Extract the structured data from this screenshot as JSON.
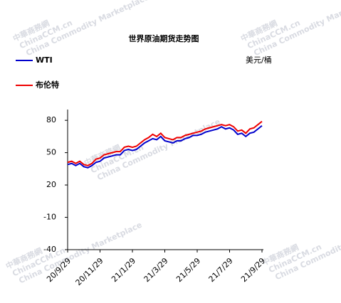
{
  "chart_data": {
    "type": "line",
    "title": "世界原油期货走势图",
    "unit": "美元/桶",
    "watermark": [
      "中華商務網",
      "ChinaCCM.cn",
      "China Commodity Marketplace"
    ],
    "categories": [
      "20/9/29",
      null,
      null,
      null,
      null,
      null,
      null,
      null,
      "20/11/29",
      null,
      null,
      null,
      null,
      null,
      null,
      null,
      "21/1/29",
      null,
      null,
      null,
      null,
      null,
      null,
      null,
      "21/3/29",
      null,
      null,
      null,
      null,
      null,
      null,
      null,
      "21/5/29",
      null,
      null,
      null,
      null,
      null,
      null,
      null,
      "21/7/29",
      null,
      null,
      null,
      null,
      null,
      null,
      null,
      "21/9/29"
    ],
    "series": [
      {
        "name": "WTI",
        "color": "#0000cc",
        "values": [
          39,
          40,
          38,
          40,
          37,
          36,
          38,
          41,
          42,
          45,
          46,
          47,
          48,
          48,
          52,
          53,
          52,
          53,
          56,
          59,
          61,
          63,
          62,
          65,
          61,
          60,
          59,
          61,
          61,
          63,
          64,
          66,
          66,
          67,
          69,
          70,
          71,
          72,
          74,
          72,
          73,
          71,
          67,
          68,
          65,
          68,
          69,
          72,
          75
        ]
      },
      {
        "name": "布伦特",
        "color": "#ee0000",
        "values": [
          41,
          42,
          40,
          42,
          39,
          38,
          40,
          44,
          45,
          48,
          49,
          50,
          51,
          51,
          55,
          56,
          55,
          56,
          59,
          62,
          64,
          67,
          65,
          68,
          64,
          63,
          62,
          64,
          64,
          66,
          67,
          68,
          69,
          70,
          72,
          73,
          74,
          75,
          76,
          75,
          76,
          74,
          70,
          71,
          68,
          72,
          73,
          76,
          79
        ]
      }
    ],
    "ylim": [
      -40,
      90
    ],
    "yticks": [
      80,
      50,
      20,
      -10,
      -40
    ],
    "grid": false
  }
}
